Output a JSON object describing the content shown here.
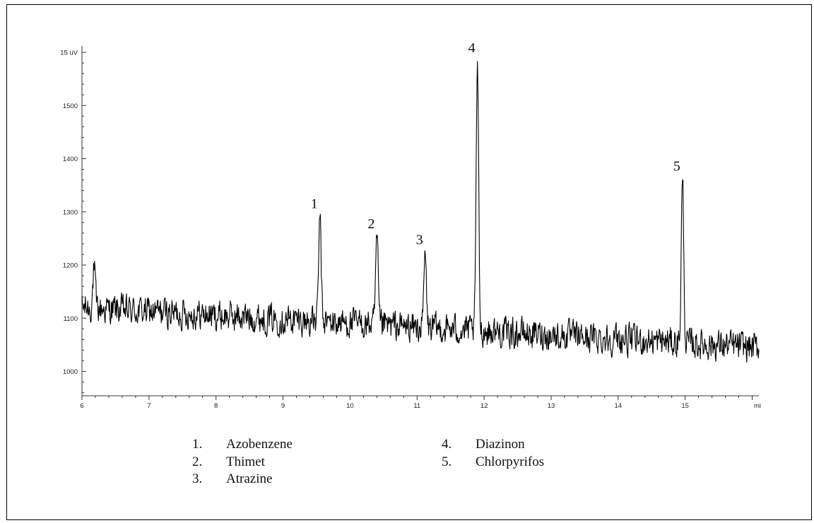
{
  "chart_data": {
    "type": "line",
    "title": "",
    "xlabel": "",
    "ylabel": "",
    "x_unit": "mi",
    "y_unit": "uV",
    "xlim": [
      6,
      16.1
    ],
    "ylim": [
      955,
      1590
    ],
    "x_ticks": [
      "6",
      "7",
      "8",
      "9",
      "10",
      "11",
      "12",
      "13",
      "14",
      "15"
    ],
    "x_end_label": "mi",
    "y_ticks": [
      "1000",
      "1100",
      "1200",
      "1300",
      "1400",
      "1500"
    ],
    "y_top_label": "15 uV",
    "y_top_value": 1600,
    "baseline": {
      "start": [
        6.0,
        1120
      ],
      "end": [
        16.1,
        1045
      ],
      "noise_amplitude": 28
    },
    "early_bump": {
      "x": 6.18,
      "y": 1190
    },
    "peaks": [
      {
        "label": "1",
        "x": 9.55,
        "y": 1290
      },
      {
        "label": "2",
        "x": 10.4,
        "y": 1252
      },
      {
        "label": "3",
        "x": 11.12,
        "y": 1222
      },
      {
        "label": "4",
        "x": 11.9,
        "y": 1583
      },
      {
        "label": "5",
        "x": 14.96,
        "y": 1360
      }
    ],
    "grid": false
  },
  "legend": {
    "left": [
      {
        "num": "1.",
        "name": "Azobenzene"
      },
      {
        "num": "2.",
        "name": "Thimet"
      },
      {
        "num": "3.",
        "name": "Atrazine"
      }
    ],
    "right": [
      {
        "num": "4.",
        "name": "Diazinon"
      },
      {
        "num": "5.",
        "name": "Chlorpyrifos"
      }
    ]
  },
  "colors": {
    "trace": "#000000",
    "axis": "#333333"
  }
}
